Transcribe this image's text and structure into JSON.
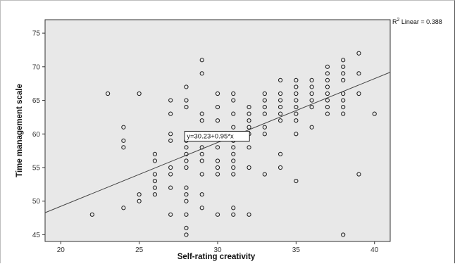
{
  "chart_data": {
    "type": "scatter",
    "xlabel": "Self-rating creativity",
    "ylabel": "Time management scale",
    "xlim": [
      19,
      41
    ],
    "ylim": [
      44,
      77
    ],
    "x_ticks": [
      "20",
      "25",
      "30",
      "35",
      "40"
    ],
    "y_ticks": [
      "45",
      "50",
      "55",
      "60",
      "65",
      "70",
      "75"
    ],
    "grid": false,
    "background_color": "#e8e8e8",
    "marker_color": "#1a1a1a",
    "fit_line": {
      "intercept": 30.23,
      "slope": 0.95,
      "equation_label": "y=30.23+0.95*x"
    },
    "r_squared_label_prefix": "R",
    "r_squared_label_superscript": "2",
    "r_squared_label_text": " Linear = 0.388",
    "points": [
      [
        22,
        48
      ],
      [
        23,
        66
      ],
      [
        24,
        61
      ],
      [
        24,
        59
      ],
      [
        24,
        58
      ],
      [
        24,
        49
      ],
      [
        25,
        66
      ],
      [
        25,
        51
      ],
      [
        25,
        50
      ],
      [
        26,
        57
      ],
      [
        26,
        56
      ],
      [
        26,
        54
      ],
      [
        26,
        53
      ],
      [
        26,
        52
      ],
      [
        26,
        51
      ],
      [
        27,
        65
      ],
      [
        27,
        63
      ],
      [
        27,
        60
      ],
      [
        27,
        59
      ],
      [
        27,
        55
      ],
      [
        27,
        54
      ],
      [
        27,
        52
      ],
      [
        27,
        48
      ],
      [
        28,
        67
      ],
      [
        28,
        65
      ],
      [
        28,
        64
      ],
      [
        28,
        59
      ],
      [
        28,
        58
      ],
      [
        28,
        57
      ],
      [
        28,
        56
      ],
      [
        28,
        55
      ],
      [
        28,
        52
      ],
      [
        28,
        51
      ],
      [
        28,
        50
      ],
      [
        28,
        48
      ],
      [
        28,
        46
      ],
      [
        28,
        45
      ],
      [
        29,
        71
      ],
      [
        29,
        69
      ],
      [
        29,
        63
      ],
      [
        29,
        62
      ],
      [
        29,
        60
      ],
      [
        29,
        58
      ],
      [
        29,
        57
      ],
      [
        29,
        56
      ],
      [
        29,
        54
      ],
      [
        29,
        51
      ],
      [
        29,
        49
      ],
      [
        30,
        66
      ],
      [
        30,
        64
      ],
      [
        30,
        62
      ],
      [
        30,
        60
      ],
      [
        30,
        58
      ],
      [
        30,
        56
      ],
      [
        30,
        55
      ],
      [
        30,
        54
      ],
      [
        30,
        48
      ],
      [
        31,
        66
      ],
      [
        31,
        65
      ],
      [
        31,
        63
      ],
      [
        31,
        61
      ],
      [
        31,
        60
      ],
      [
        31,
        59
      ],
      [
        31,
        58
      ],
      [
        31,
        57
      ],
      [
        31,
        56
      ],
      [
        31,
        55
      ],
      [
        31,
        54
      ],
      [
        31,
        49
      ],
      [
        31,
        48
      ],
      [
        32,
        64
      ],
      [
        32,
        63
      ],
      [
        32,
        62
      ],
      [
        32,
        61
      ],
      [
        32,
        60
      ],
      [
        32,
        58
      ],
      [
        32,
        55
      ],
      [
        32,
        48
      ],
      [
        33,
        66
      ],
      [
        33,
        65
      ],
      [
        33,
        64
      ],
      [
        33,
        63
      ],
      [
        33,
        61
      ],
      [
        33,
        60
      ],
      [
        33,
        54
      ],
      [
        34,
        68
      ],
      [
        34,
        66
      ],
      [
        34,
        65
      ],
      [
        34,
        64
      ],
      [
        34,
        63
      ],
      [
        34,
        62
      ],
      [
        34,
        57
      ],
      [
        34,
        55
      ],
      [
        35,
        68
      ],
      [
        35,
        67
      ],
      [
        35,
        66
      ],
      [
        35,
        65
      ],
      [
        35,
        64
      ],
      [
        35,
        63
      ],
      [
        35,
        62
      ],
      [
        35,
        60
      ],
      [
        35,
        53
      ],
      [
        36,
        68
      ],
      [
        36,
        67
      ],
      [
        36,
        66
      ],
      [
        36,
        65
      ],
      [
        36,
        64
      ],
      [
        36,
        61
      ],
      [
        37,
        70
      ],
      [
        37,
        69
      ],
      [
        37,
        68
      ],
      [
        37,
        67
      ],
      [
        37,
        66
      ],
      [
        37,
        65
      ],
      [
        37,
        64
      ],
      [
        37,
        63
      ],
      [
        38,
        71
      ],
      [
        38,
        70
      ],
      [
        38,
        69
      ],
      [
        38,
        68
      ],
      [
        38,
        66
      ],
      [
        38,
        65
      ],
      [
        38,
        64
      ],
      [
        38,
        63
      ],
      [
        38,
        45
      ],
      [
        39,
        72
      ],
      [
        39,
        69
      ],
      [
        39,
        66
      ],
      [
        39,
        54
      ],
      [
        40,
        63
      ]
    ]
  }
}
